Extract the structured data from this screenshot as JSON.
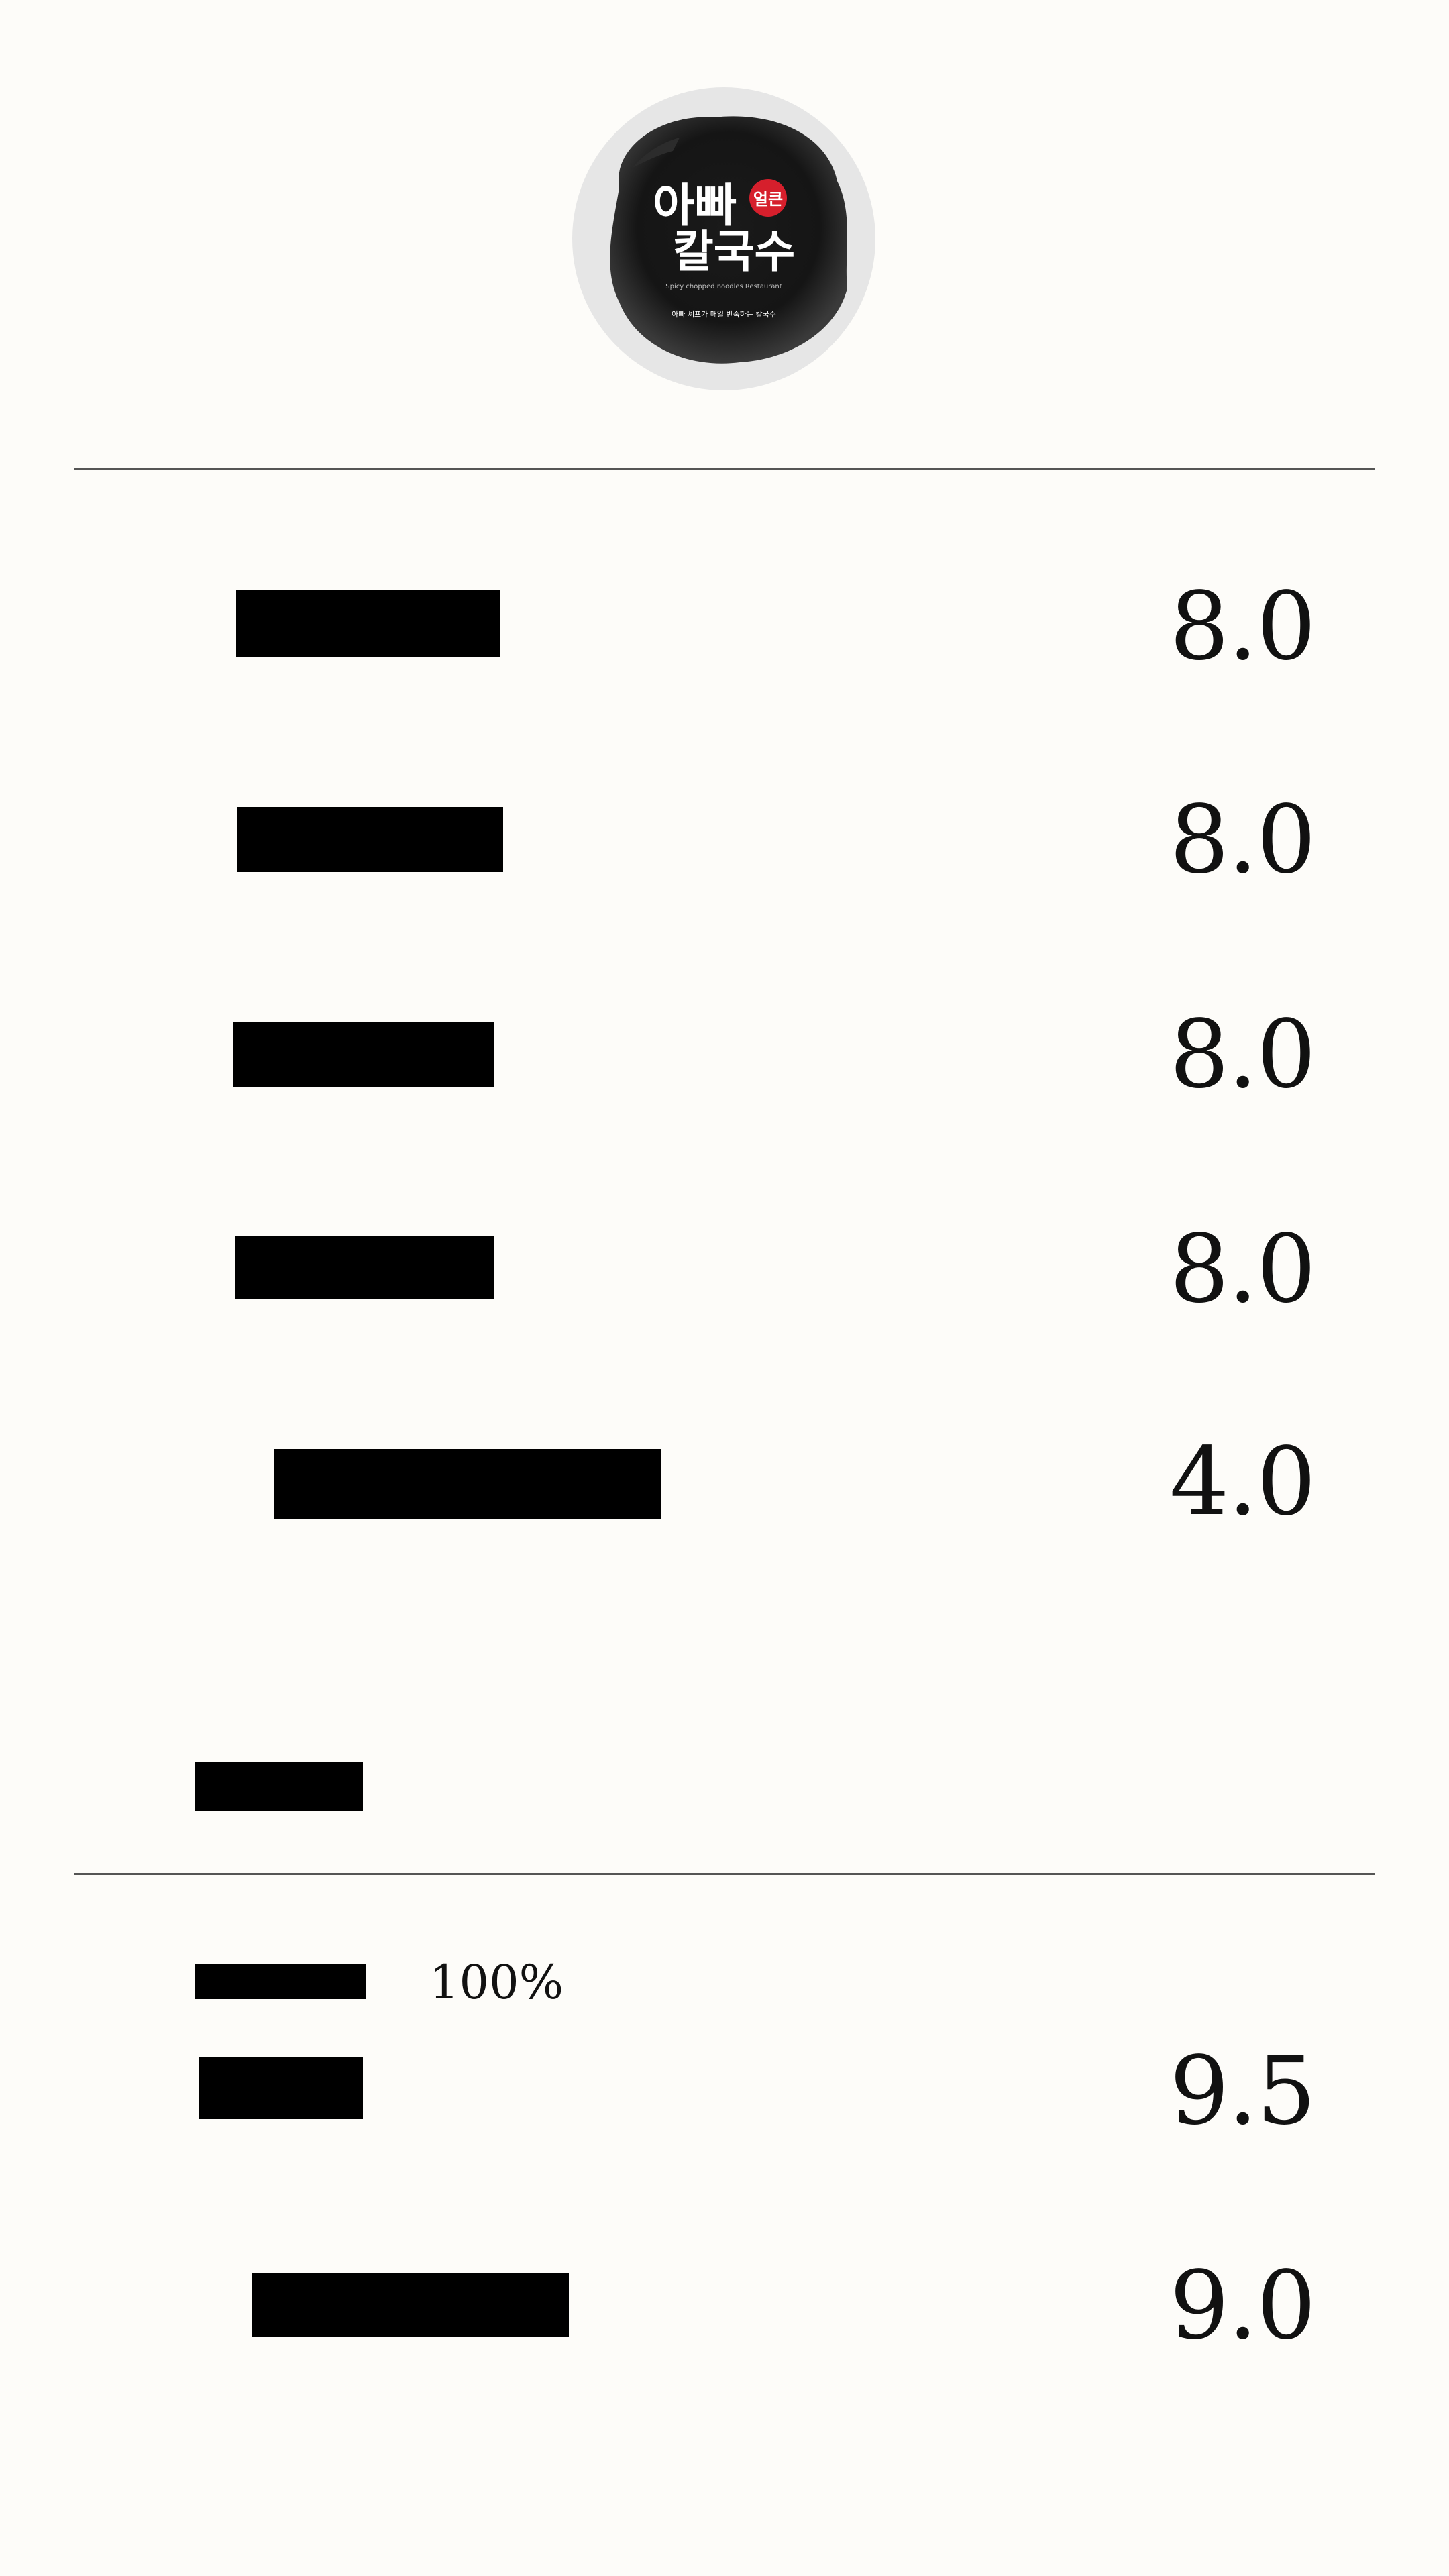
{
  "logo": {
    "title_line1": "아빠",
    "title_line2": "칼국수",
    "red_mark": "얼큰",
    "subtitle": "Spicy chopped noodles Restaurant",
    "tagline": "아빠 셰프가 매일 반죽하는 칼국수",
    "colors": {
      "ink": "#141414",
      "circle": "#e6e6e6",
      "accent": "#d61f2c"
    }
  },
  "menu_section_1": {
    "items": [
      {
        "name": "",
        "price": "8.0"
      },
      {
        "name": "",
        "price": "8.0"
      },
      {
        "name": "",
        "price": "8.0"
      },
      {
        "name": "",
        "price": "8.0"
      },
      {
        "name": "",
        "price": "4.0"
      }
    ]
  },
  "menu_section_2": {
    "heading": "",
    "note_label": "",
    "note_value": "100%",
    "items": [
      {
        "name": "",
        "price": "9.5"
      },
      {
        "name": "",
        "price": "9.0"
      }
    ]
  },
  "colors": {
    "background": "#fdfcf9",
    "text": "#111111",
    "redaction": "#000000",
    "divider": "#555555"
  }
}
